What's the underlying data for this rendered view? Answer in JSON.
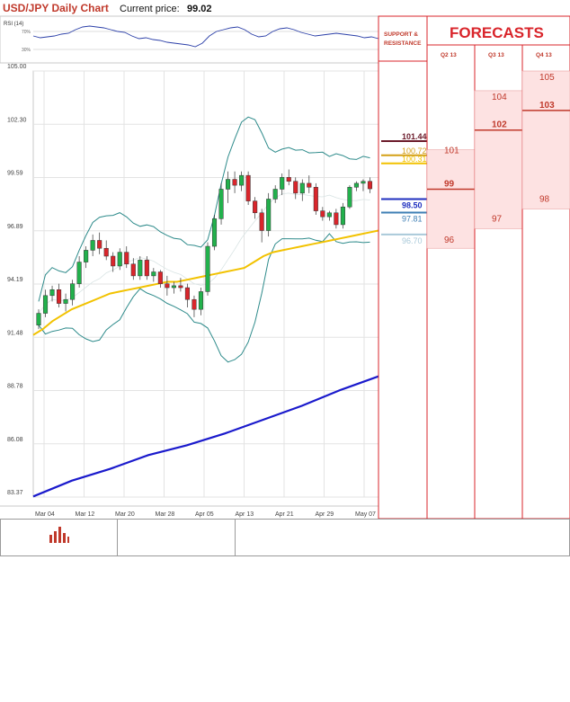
{
  "header": {
    "title": "USD/JPY Daily Chart",
    "price_label": "Current price:",
    "price_value": "99.02"
  },
  "rsi": {
    "label": "RSI (14)",
    "levels": [
      "70%",
      "30%"
    ]
  },
  "sr_panel": {
    "label": "SUPPORT & RESISTANCE",
    "levels": [
      {
        "value": "101.44",
        "color": "#6b1a2a"
      },
      {
        "value": "100.72",
        "color": "#d4a017"
      },
      {
        "value": "100.31",
        "color": "#f2c200"
      },
      {
        "value": "98.50",
        "color": "#1f2fbf"
      },
      {
        "value": "97.81",
        "color": "#3f7fb5"
      },
      {
        "value": "96.70",
        "color": "#a9c9d9"
      }
    ]
  },
  "forecasts": {
    "title": "FORECASTS",
    "quarters": [
      {
        "name": "Q2 13",
        "high": "101",
        "mid": "99",
        "low": "96"
      },
      {
        "name": "Q3 13",
        "high": "104",
        "mid": "102",
        "low": "97"
      },
      {
        "name": "Q4 13",
        "high": "105",
        "mid": "103",
        "low": "98"
      }
    ]
  },
  "chart_data": {
    "type": "line",
    "title": "USD/JPY Daily Chart",
    "y_ticks": [
      "105.00",
      "102.30",
      "99.59",
      "96.89",
      "94.19",
      "91.48",
      "88.78",
      "86.08",
      "83.37"
    ],
    "ylim": [
      83.37,
      105.0
    ],
    "x_ticks": [
      "Mar 04",
      "Mar 12",
      "Mar 20",
      "Mar 28",
      "Apr 05",
      "Apr 13",
      "Apr 21",
      "Apr 29",
      "May 07"
    ],
    "candles": [
      [
        92.1,
        92.9,
        91.9,
        92.7
      ],
      [
        92.7,
        93.9,
        92.5,
        93.6
      ],
      [
        93.6,
        94.1,
        93.3,
        93.9
      ],
      [
        93.9,
        94.2,
        93.0,
        93.2
      ],
      [
        93.2,
        93.7,
        92.8,
        93.4
      ],
      [
        93.4,
        94.4,
        93.1,
        94.2
      ],
      [
        94.2,
        95.6,
        94.0,
        95.3
      ],
      [
        95.3,
        96.1,
        95.0,
        95.9
      ],
      [
        95.9,
        96.7,
        95.6,
        96.4
      ],
      [
        96.4,
        96.8,
        95.7,
        96.0
      ],
      [
        96.0,
        96.4,
        95.4,
        95.6
      ],
      [
        95.6,
        95.8,
        94.8,
        95.1
      ],
      [
        95.1,
        96.0,
        94.9,
        95.8
      ],
      [
        95.8,
        96.1,
        95.0,
        95.2
      ],
      [
        95.2,
        95.5,
        94.4,
        94.6
      ],
      [
        94.6,
        95.6,
        94.4,
        95.4
      ],
      [
        95.4,
        95.6,
        94.4,
        94.6
      ],
      [
        94.6,
        95.0,
        94.3,
        94.8
      ],
      [
        94.8,
        94.9,
        94.0,
        94.2
      ],
      [
        94.2,
        94.6,
        93.6,
        94.0
      ],
      [
        94.0,
        94.3,
        93.7,
        94.1
      ],
      [
        94.1,
        94.5,
        93.8,
        94.0
      ],
      [
        94.0,
        94.2,
        93.0,
        93.4
      ],
      [
        93.4,
        93.6,
        92.5,
        92.9
      ],
      [
        92.9,
        94.0,
        92.6,
        93.8
      ],
      [
        93.8,
        96.3,
        93.6,
        96.1
      ],
      [
        96.1,
        97.7,
        95.9,
        97.5
      ],
      [
        97.5,
        99.3,
        97.2,
        99.0
      ],
      [
        99.0,
        99.9,
        98.3,
        99.5
      ],
      [
        99.5,
        99.9,
        98.8,
        99.2
      ],
      [
        99.2,
        99.9,
        98.9,
        99.7
      ],
      [
        99.7,
        99.9,
        98.2,
        98.4
      ],
      [
        98.4,
        98.6,
        97.5,
        97.8
      ],
      [
        97.8,
        98.0,
        96.3,
        96.9
      ],
      [
        96.9,
        98.8,
        96.6,
        98.5
      ],
      [
        98.5,
        99.2,
        98.3,
        99.0
      ],
      [
        99.0,
        99.8,
        98.7,
        99.6
      ],
      [
        99.6,
        100.0,
        99.2,
        99.4
      ],
      [
        99.4,
        99.6,
        98.5,
        98.8
      ],
      [
        98.8,
        99.5,
        98.4,
        99.3
      ],
      [
        99.3,
        99.7,
        98.8,
        99.1
      ],
      [
        99.1,
        99.3,
        97.7,
        97.9
      ],
      [
        97.9,
        98.1,
        97.4,
        97.6
      ],
      [
        97.6,
        97.9,
        97.4,
        97.8
      ],
      [
        97.8,
        98.0,
        97.0,
        97.2
      ],
      [
        97.2,
        98.3,
        97.0,
        98.1
      ],
      [
        98.1,
        99.2,
        98.0,
        99.1
      ],
      [
        99.1,
        99.4,
        98.9,
        99.3
      ],
      [
        99.3,
        99.5,
        98.9,
        99.4
      ],
      [
        99.4,
        99.6,
        98.8,
        99.02
      ]
    ],
    "sma55": [
      91.6,
      91.9,
      92.3,
      92.6,
      92.9,
      93.1,
      93.3,
      93.5,
      93.7,
      93.8,
      93.9,
      94.0,
      94.1,
      94.2,
      94.3,
      94.3,
      94.4,
      94.5,
      94.6,
      94.7,
      94.8,
      94.9,
      95.0,
      95.3,
      95.6,
      95.8,
      95.9,
      96.0,
      96.1,
      96.2,
      96.3,
      96.4,
      96.5,
      96.6,
      96.7,
      96.8,
      96.9
    ],
    "ma_long": [
      83.4,
      84.2,
      84.8,
      85.5,
      86.0,
      86.6,
      87.3,
      88.0,
      88.8,
      89.5
    ]
  }
}
